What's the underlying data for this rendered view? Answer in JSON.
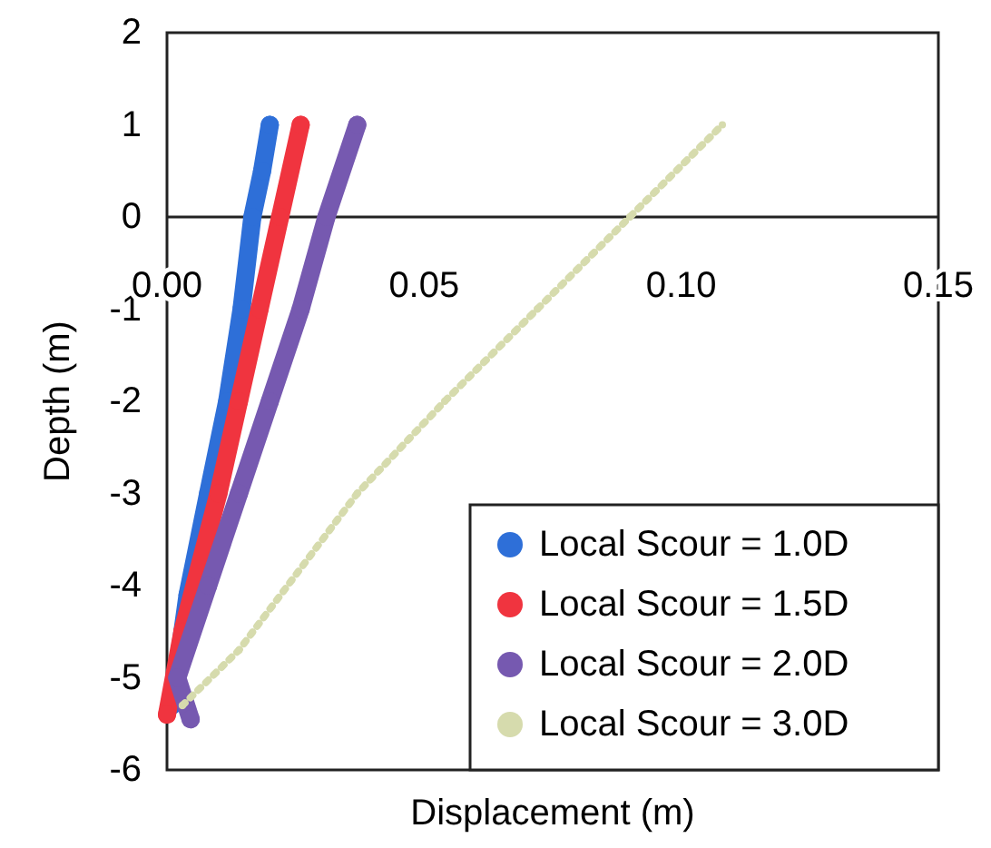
{
  "chart_data": {
    "type": "line",
    "xlabel": "Displacement (m)",
    "ylabel": "Depth (m)",
    "xlim": [
      0,
      0.15
    ],
    "xticks": [
      {
        "value": 0,
        "label": "0.00"
      },
      {
        "value": 0.05,
        "label": "0.05"
      },
      {
        "value": 0.1,
        "label": "0.10"
      },
      {
        "value": 0.15,
        "label": "0.15"
      }
    ],
    "ylim": [
      -6,
      2
    ],
    "yticks": [
      -6,
      -5,
      -4,
      -3,
      -2,
      -1,
      0,
      1,
      2
    ],
    "grid": false,
    "legend": "bottom right",
    "marker": "circle",
    "series": [
      {
        "name": "Local Scour = 1.0D",
        "color": "#2e6fd8",
        "line_style": "solid",
        "x": [
          0.001,
          0.004,
          0.008,
          0.0117,
          0.0145,
          0.0166,
          0.0185,
          0.02
        ],
        "values": [
          -5.3,
          -4.1,
          -3,
          -2,
          -1,
          0,
          0.5,
          1
        ]
      },
      {
        "name": "Local Scour = 1.5D",
        "color": "#f0343f",
        "line_style": "solid",
        "x": [
          0,
          0.003,
          0.01,
          0.014,
          0.018,
          0.022,
          0.026
        ],
        "values": [
          -5.4,
          -4.5,
          -3,
          -2,
          -1,
          0,
          1
        ]
      },
      {
        "name": "Local Scour = 2.0D",
        "color": "#7659b0",
        "line_style": "solid",
        "x": [
          0.0046,
          0.002,
          0.008,
          0.014,
          0.02,
          0.026,
          0.031,
          0.037
        ],
        "values": [
          -5.45,
          -5,
          -4,
          -3,
          -2,
          -1,
          0,
          1
        ]
      },
      {
        "name": "Local Scour = 3.0D",
        "color": "#d6dbad",
        "line_style": "dotted",
        "x": [
          0.003,
          0.014,
          0.037,
          0.054,
          0.072,
          0.09,
          0.108
        ],
        "values": [
          -5.3,
          -4.7,
          -3,
          -2,
          -1,
          0,
          1
        ]
      }
    ]
  }
}
